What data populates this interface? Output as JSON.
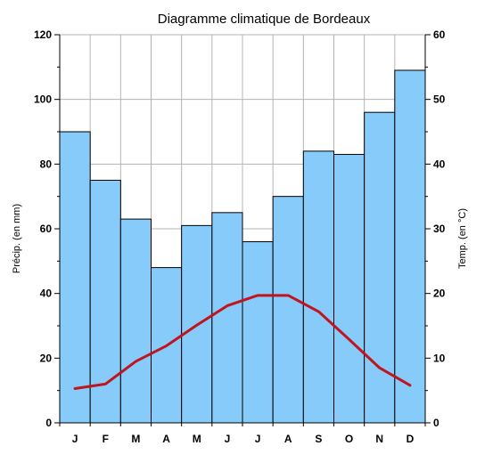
{
  "chart_data": {
    "type": "bar",
    "title": "Diagramme climatique de Bordeaux",
    "categories": [
      "J",
      "F",
      "M",
      "A",
      "M",
      "J",
      "J",
      "A",
      "S",
      "O",
      "N",
      "D"
    ],
    "series": [
      {
        "name": "Précip. (en mm)",
        "type": "bar",
        "axis": "left",
        "values": [
          90,
          75,
          63,
          48,
          61,
          65,
          56,
          70,
          84,
          83,
          96,
          109
        ]
      },
      {
        "name": "Temp. (en °C)",
        "type": "line",
        "axis": "right",
        "values": [
          5.3,
          6.0,
          9.5,
          11.9,
          15.1,
          18.1,
          19.7,
          19.7,
          17.2,
          12.9,
          8.5,
          5.8
        ]
      }
    ],
    "ylabel": "Précip. (en mm)",
    "y2label": "Temp. (en °C)",
    "ylim": [
      0,
      120
    ],
    "y2lim": [
      0,
      60
    ],
    "yticks": [
      "0",
      "20",
      "40",
      "60",
      "80",
      "100",
      "120"
    ],
    "y2ticks": [
      "0",
      "10",
      "20",
      "30",
      "40",
      "50",
      "60"
    ],
    "grid": true,
    "colors": {
      "bar_fill": "#87CBFA",
      "bar_stroke": "#000000",
      "line": "#C0141E",
      "grid": "#B3B3B3"
    }
  }
}
